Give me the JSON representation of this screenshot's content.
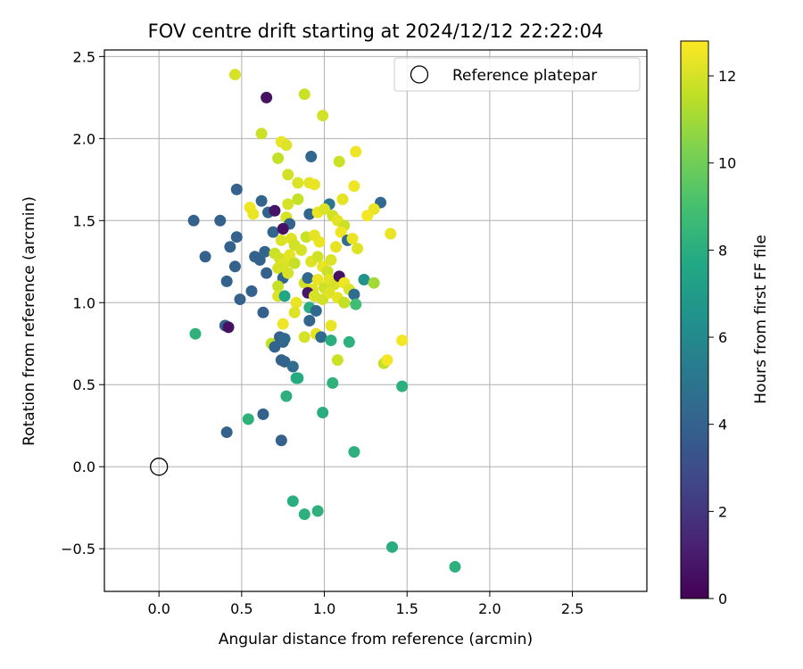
{
  "chart_data": {
    "type": "scatter",
    "title": "FOV centre drift starting at 2024/12/12 22:22:04",
    "xlabel": "Angular distance from reference (arcmin)",
    "ylabel": "Rotation from reference (arcmin)",
    "xlim": [
      -0.33,
      2.95
    ],
    "ylim": [
      -0.76,
      2.54
    ],
    "xticks": [
      0.0,
      0.5,
      1.0,
      1.5,
      2.0,
      2.5
    ],
    "xtick_labels": [
      "0.0",
      "0.5",
      "1.0",
      "1.5",
      "2.0",
      "2.5"
    ],
    "yticks": [
      -0.5,
      0.0,
      0.5,
      1.0,
      1.5,
      2.0,
      2.5
    ],
    "ytick_labels": [
      "−0.5",
      "0.0",
      "0.5",
      "1.0",
      "1.5",
      "2.0",
      "2.5"
    ],
    "grid": true,
    "legend": {
      "placement": "top-right",
      "entries": [
        "Reference platepar"
      ]
    },
    "reference_point": {
      "x": 0.0,
      "y": 0.0,
      "label": "Reference platepar",
      "marker": "hollow-circle"
    },
    "colorbar": {
      "label": "Hours from first FF file",
      "range": [
        0,
        12.8
      ],
      "ticks": [
        0,
        2,
        4,
        6,
        8,
        10,
        12
      ],
      "tick_labels": [
        "0",
        "2",
        "4",
        "6",
        "8",
        "10",
        "12"
      ],
      "colormap": "viridis"
    },
    "points": [
      [
        0.46,
        2.39,
        12.0
      ],
      [
        0.65,
        2.25,
        0.6
      ],
      [
        0.88,
        2.27,
        11.8
      ],
      [
        0.99,
        2.14,
        11.9
      ],
      [
        0.62,
        2.03,
        11.8
      ],
      [
        0.74,
        1.98,
        12.4
      ],
      [
        0.77,
        1.96,
        12.2
      ],
      [
        0.92,
        1.89,
        4.2
      ],
      [
        0.72,
        1.88,
        11.6
      ],
      [
        1.09,
        1.86,
        11.8
      ],
      [
        1.19,
        1.92,
        12.5
      ],
      [
        0.78,
        1.78,
        11.9
      ],
      [
        0.84,
        1.73,
        12.1
      ],
      [
        0.91,
        1.73,
        12.3
      ],
      [
        0.94,
        1.72,
        12.4
      ],
      [
        1.18,
        1.71,
        12.5
      ],
      [
        0.47,
        1.69,
        4.0
      ],
      [
        0.62,
        1.62,
        4.1
      ],
      [
        0.84,
        1.63,
        11.7
      ],
      [
        0.78,
        1.6,
        12.0
      ],
      [
        1.03,
        1.6,
        5.0
      ],
      [
        1.11,
        1.63,
        12.3
      ],
      [
        1.34,
        1.61,
        4.3
      ],
      [
        1.3,
        1.57,
        12.4
      ],
      [
        1.26,
        1.53,
        12.6
      ],
      [
        0.55,
        1.58,
        12.5
      ],
      [
        0.57,
        1.54,
        12.4
      ],
      [
        0.66,
        1.55,
        4.1
      ],
      [
        0.7,
        1.56,
        0.7
      ],
      [
        0.77,
        1.52,
        12.0
      ],
      [
        0.79,
        1.48,
        4.0
      ],
      [
        0.91,
        1.54,
        4.2
      ],
      [
        0.96,
        1.55,
        12.4
      ],
      [
        1.0,
        1.57,
        12.1
      ],
      [
        1.05,
        1.53,
        11.9
      ],
      [
        1.08,
        1.5,
        12.3
      ],
      [
        1.12,
        1.47,
        11.8
      ],
      [
        0.21,
        1.5,
        4.0
      ],
      [
        0.37,
        1.5,
        4.0
      ],
      [
        0.47,
        1.4,
        4.0
      ],
      [
        0.43,
        1.34,
        4.0
      ],
      [
        0.69,
        1.43,
        4.2
      ],
      [
        0.75,
        1.45,
        0.6
      ],
      [
        0.74,
        1.38,
        12.1
      ],
      [
        0.8,
        1.39,
        12.2
      ],
      [
        0.82,
        1.35,
        11.9
      ],
      [
        0.89,
        1.4,
        11.8
      ],
      [
        0.94,
        1.41,
        12.3
      ],
      [
        0.97,
        1.37,
        12.4
      ],
      [
        1.1,
        1.43,
        12.5
      ],
      [
        1.14,
        1.38,
        4.5
      ],
      [
        1.17,
        1.39,
        12.4
      ],
      [
        1.2,
        1.33,
        12.2
      ],
      [
        1.4,
        1.42,
        12.4
      ],
      [
        0.28,
        1.28,
        4.0
      ],
      [
        0.58,
        1.28,
        4.0
      ],
      [
        0.61,
        1.26,
        4.0
      ],
      [
        0.64,
        1.31,
        4.1
      ],
      [
        0.7,
        1.3,
        11.8
      ],
      [
        0.73,
        1.27,
        11.9
      ],
      [
        0.76,
        1.24,
        12.1
      ],
      [
        0.65,
        1.18,
        4.0
      ],
      [
        0.72,
        1.21,
        12.0
      ],
      [
        0.79,
        1.29,
        12.3
      ],
      [
        0.82,
        1.24,
        11.7
      ],
      [
        0.86,
        1.32,
        12.0
      ],
      [
        0.92,
        1.25,
        12.2
      ],
      [
        0.96,
        1.28,
        11.9
      ],
      [
        0.99,
        1.22,
        12.4
      ],
      [
        1.04,
        1.26,
        12.1
      ],
      [
        1.07,
        1.34,
        12.3
      ],
      [
        1.02,
        1.19,
        11.8
      ],
      [
        0.46,
        1.22,
        4.0
      ],
      [
        0.41,
        1.13,
        4.0
      ],
      [
        0.56,
        1.07,
        4.0
      ],
      [
        0.49,
        1.02,
        4.0
      ],
      [
        0.75,
        1.15,
        4.2
      ],
      [
        0.72,
        1.1,
        11.7
      ],
      [
        0.78,
        1.18,
        12.0
      ],
      [
        0.88,
        1.12,
        11.9
      ],
      [
        0.9,
        1.15,
        4.3
      ],
      [
        0.93,
        1.08,
        12.2
      ],
      [
        0.96,
        1.14,
        12.4
      ],
      [
        1.0,
        1.09,
        11.8
      ],
      [
        1.03,
        1.14,
        12.3
      ],
      [
        1.06,
        1.11,
        12.0
      ],
      [
        1.09,
        1.16,
        0.6
      ],
      [
        1.12,
        1.12,
        12.5
      ],
      [
        1.15,
        1.08,
        12.1
      ],
      [
        1.18,
        1.05,
        4.5
      ],
      [
        1.24,
        1.14,
        6.5
      ],
      [
        1.3,
        1.12,
        11.0
      ],
      [
        0.72,
        1.04,
        12.1
      ],
      [
        0.76,
        1.04,
        7.5
      ],
      [
        0.83,
        1.0,
        12.4
      ],
      [
        0.9,
        1.06,
        0.8
      ],
      [
        0.94,
        1.04,
        12.0
      ],
      [
        0.99,
        1.02,
        11.9
      ],
      [
        1.03,
        1.06,
        12.2
      ],
      [
        1.08,
        1.03,
        12.3
      ],
      [
        1.12,
        1.0,
        11.7
      ],
      [
        1.19,
        0.99,
        8.8
      ],
      [
        0.63,
        0.94,
        4.0
      ],
      [
        0.82,
        0.94,
        12.2
      ],
      [
        0.91,
        0.97,
        8.0
      ],
      [
        0.95,
        0.95,
        4.3
      ],
      [
        0.4,
        0.86,
        4.0
      ],
      [
        0.42,
        0.85,
        0.6
      ],
      [
        0.75,
        0.87,
        12.5
      ],
      [
        0.91,
        0.89,
        4.2
      ],
      [
        1.04,
        0.86,
        12.4
      ],
      [
        0.22,
        0.81,
        8.2
      ],
      [
        0.68,
        0.75,
        11.6
      ],
      [
        0.7,
        0.73,
        4.1
      ],
      [
        0.73,
        0.79,
        4.0
      ],
      [
        0.75,
        0.76,
        4.2
      ],
      [
        0.76,
        0.78,
        4.3
      ],
      [
        0.88,
        0.79,
        12.0
      ],
      [
        0.95,
        0.81,
        12.3
      ],
      [
        0.98,
        0.79,
        4.4
      ],
      [
        1.04,
        0.77,
        8.0
      ],
      [
        1.15,
        0.76,
        8.1
      ],
      [
        1.47,
        0.77,
        12.6
      ],
      [
        1.08,
        0.65,
        11.8
      ],
      [
        1.36,
        0.63,
        11.6
      ],
      [
        1.38,
        0.65,
        12.6
      ],
      [
        0.74,
        0.65,
        4.0
      ],
      [
        0.76,
        0.64,
        4.1
      ],
      [
        0.81,
        0.61,
        4.5
      ],
      [
        0.83,
        0.54,
        8.0
      ],
      [
        0.84,
        0.54,
        7.8
      ],
      [
        1.05,
        0.51,
        8.2
      ],
      [
        1.47,
        0.49,
        8.1
      ],
      [
        0.77,
        0.43,
        8.1
      ],
      [
        0.99,
        0.33,
        8.0
      ],
      [
        0.54,
        0.29,
        8.2
      ],
      [
        0.63,
        0.32,
        4.0
      ],
      [
        0.41,
        0.21,
        4.0
      ],
      [
        0.74,
        0.16,
        4.0
      ],
      [
        1.18,
        0.09,
        8.1
      ],
      [
        0.81,
        -0.21,
        8.0
      ],
      [
        0.88,
        -0.29,
        8.1
      ],
      [
        0.96,
        -0.27,
        8.2
      ],
      [
        1.41,
        -0.49,
        8.0
      ],
      [
        1.79,
        -0.61,
        8.1
      ]
    ]
  }
}
